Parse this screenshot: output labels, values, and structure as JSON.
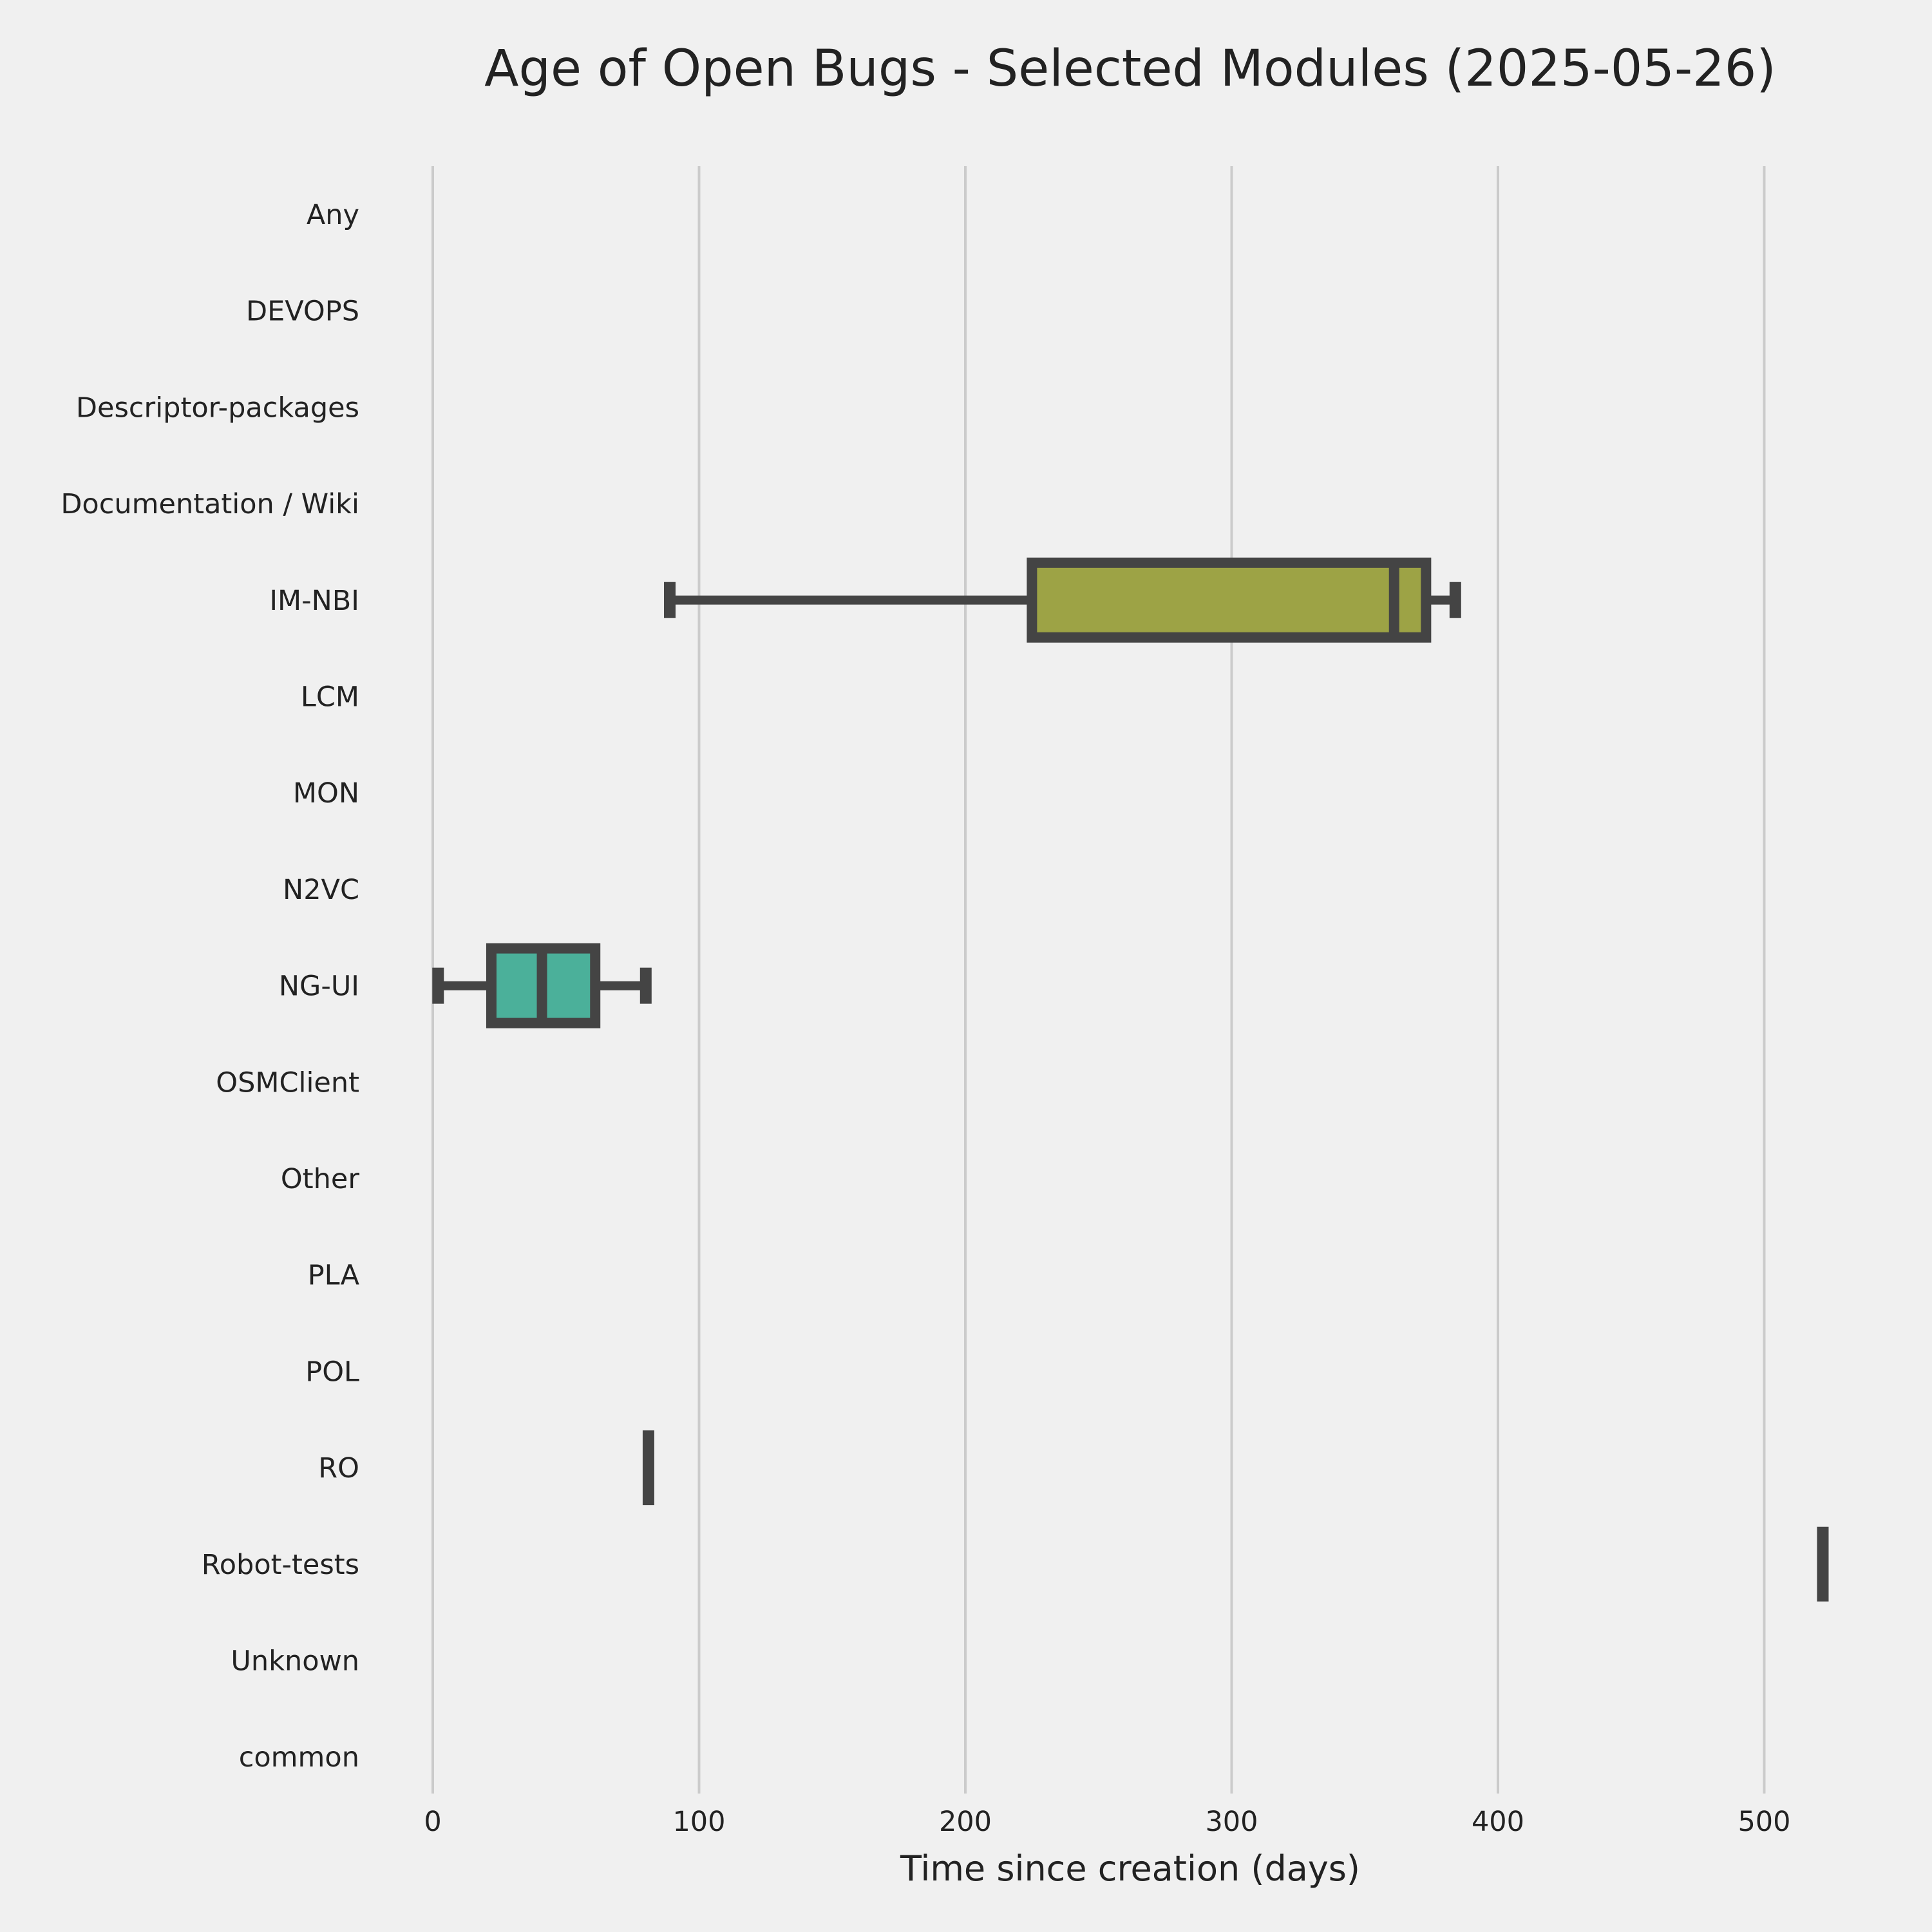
{
  "chart_data": {
    "type": "box",
    "orientation": "horizontal",
    "title": "Age of Open Bugs - Selected Modules (2025-05-26)",
    "xlabel": "Time since creation (days)",
    "ylabel": "",
    "xlim": [
      -5,
      525
    ],
    "xticks": [
      0,
      100,
      200,
      300,
      400,
      500
    ],
    "grid": "vertical",
    "colors": {
      "background": "#f0f0f0",
      "grid": "#cbcbcb",
      "outline": "#444444",
      "text": "#222222"
    },
    "categories": [
      "Any",
      "DEVOPS",
      "Descriptor-packages",
      "Documentation / Wiki",
      "IM-NBI",
      "LCM",
      "MON",
      "N2VC",
      "NG-UI",
      "OSMClient",
      "Other",
      "PLA",
      "POL",
      "RO",
      "Robot-tests",
      "Unknown",
      "common"
    ],
    "boxes": [
      {
        "category": "IM-NBI",
        "whisker_low": 89,
        "q1": 225,
        "median": 361,
        "q3": 373,
        "whisker_high": 384,
        "color": "#9da345"
      },
      {
        "category": "NG-UI",
        "whisker_low": 2,
        "q1": 22,
        "median": 41,
        "q3": 61,
        "whisker_high": 80,
        "color": "#4bb09a"
      },
      {
        "category": "RO",
        "whisker_low": 81,
        "q1": 81,
        "median": 81,
        "q3": 81,
        "whisker_high": 81,
        "color": "#444444"
      },
      {
        "category": "Robot-tests",
        "whisker_low": 522,
        "q1": 522,
        "median": 522,
        "q3": 522,
        "whisker_high": 522,
        "color": "#444444"
      }
    ]
  }
}
